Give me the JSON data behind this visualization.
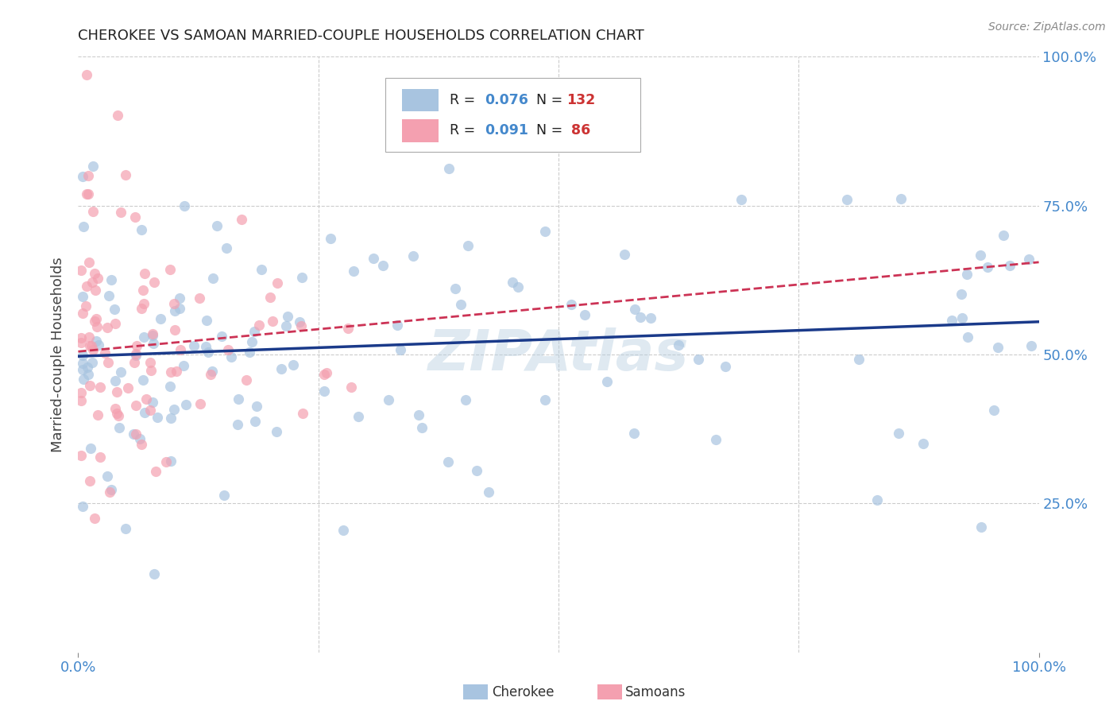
{
  "title": "CHEROKEE VS SAMOAN MARRIED-COUPLE HOUSEHOLDS CORRELATION CHART",
  "source": "Source: ZipAtlas.com",
  "ylabel": "Married-couple Households",
  "cherokee_R": "0.076",
  "cherokee_N": "132",
  "samoan_R": "0.091",
  "samoan_N": "86",
  "cherokee_color": "#a8c4e0",
  "samoan_color": "#f4a0b0",
  "cherokee_line_color": "#1a3a8a",
  "samoan_line_color": "#cc3355",
  "background_color": "#ffffff",
  "grid_color": "#cccccc",
  "title_color": "#222222",
  "axis_label_color": "#4488cc",
  "legend_R_color": "#4488cc",
  "legend_N_color": "#cc3333",
  "xlim": [
    0.0,
    1.0
  ],
  "ylim": [
    0.0,
    1.0
  ],
  "cherokee_line_x0": 0.0,
  "cherokee_line_y0": 0.497,
  "cherokee_line_x1": 1.0,
  "cherokee_line_y1": 0.555,
  "samoan_line_x0": 0.0,
  "samoan_line_y0": 0.505,
  "samoan_line_x1": 1.0,
  "samoan_line_y1": 0.655
}
